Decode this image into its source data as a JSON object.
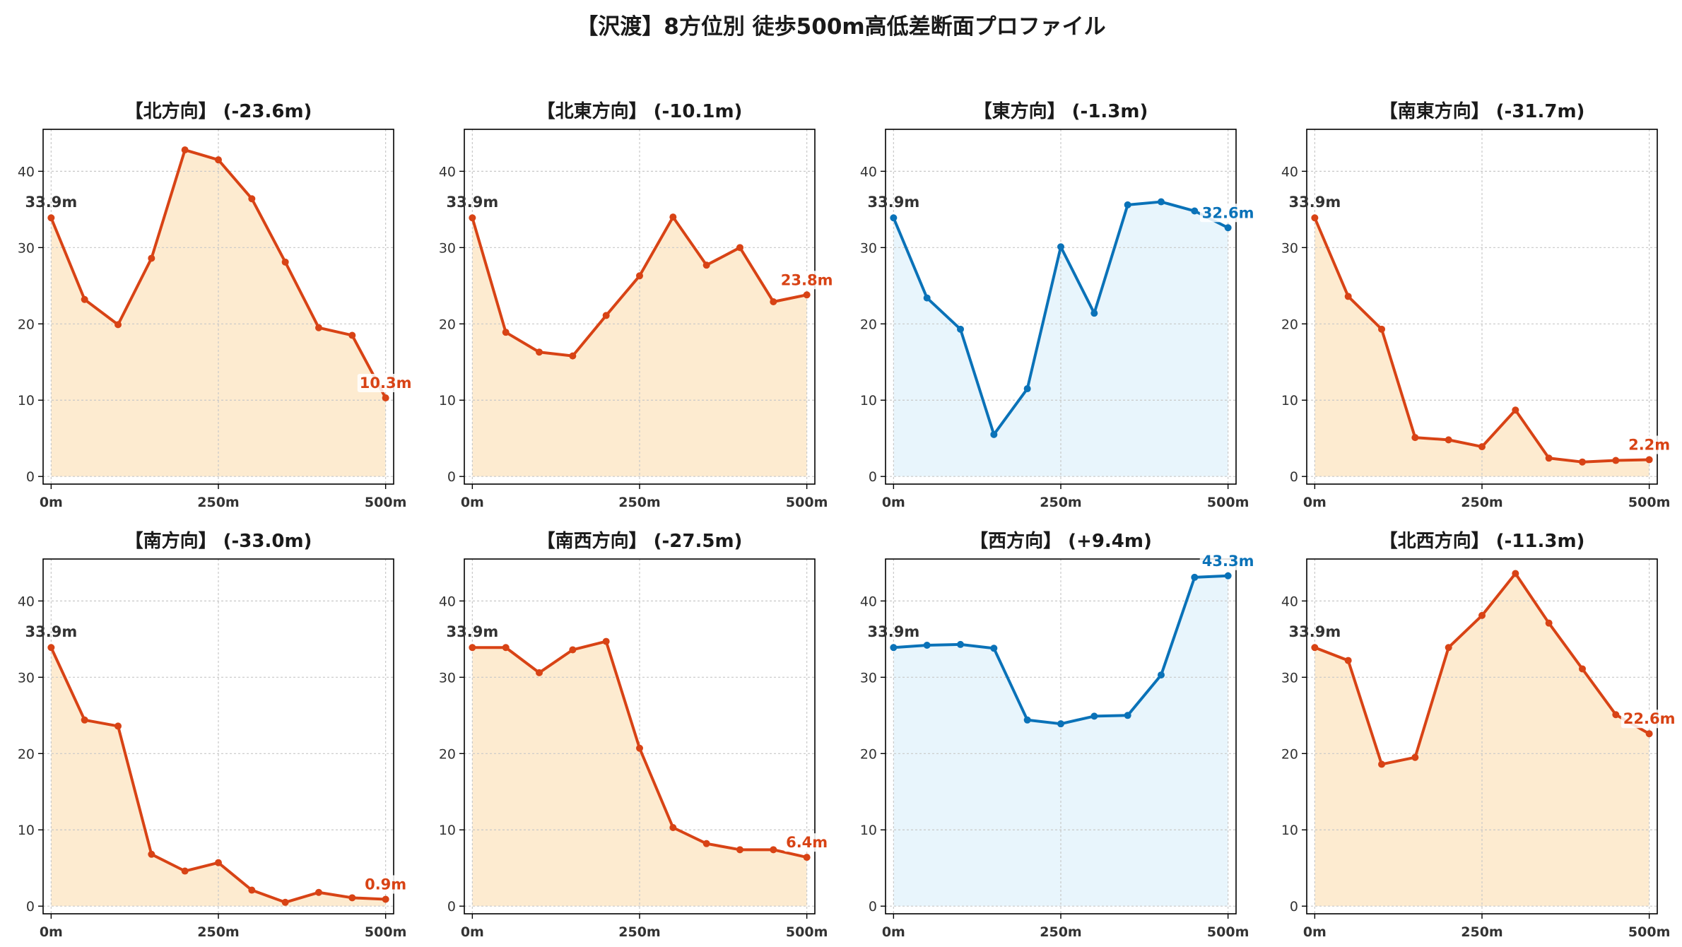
{
  "title": "【沢渡】8方位別 徒歩500m高低差断面プロファイル",
  "colors": {
    "down_line": "#d84315",
    "down_fill": "#fdebd0",
    "up_line": "#0a72b8",
    "up_fill": "#e8f5fc",
    "grid": "#c8c8c8",
    "start_label": "#333333"
  },
  "chart_data": [
    {
      "type": "area",
      "title": "【北方向】 (-23.6m)",
      "x": [
        0,
        50,
        100,
        150,
        200,
        250,
        300,
        350,
        400,
        450,
        500
      ],
      "values": [
        33.9,
        23.2,
        19.9,
        28.6,
        42.8,
        41.5,
        36.4,
        28.1,
        19.5,
        18.5,
        10.3
      ],
      "x_ticks": [
        "0m",
        "250m",
        "500m"
      ],
      "y_ticks": [
        0,
        10,
        20,
        30,
        40
      ],
      "ylim": [
        -1,
        45.5
      ],
      "start_label": "33.9m",
      "end_label": "10.3m",
      "grid": true
    },
    {
      "type": "area",
      "title": "【北東方向】 (-10.1m)",
      "x": [
        0,
        50,
        100,
        150,
        200,
        250,
        300,
        350,
        400,
        450,
        500
      ],
      "values": [
        33.9,
        18.9,
        16.3,
        15.8,
        21.1,
        26.3,
        34.0,
        27.7,
        30.0,
        22.9,
        23.8
      ],
      "x_ticks": [
        "0m",
        "250m",
        "500m"
      ],
      "y_ticks": [
        0,
        10,
        20,
        30,
        40
      ],
      "ylim": [
        -1,
        45.5
      ],
      "start_label": "33.9m",
      "end_label": "23.8m",
      "grid": true
    },
    {
      "type": "area",
      "title": "【東方向】 (-1.3m)",
      "x": [
        0,
        50,
        100,
        150,
        200,
        250,
        300,
        350,
        400,
        450,
        500
      ],
      "values": [
        33.9,
        23.4,
        19.3,
        5.5,
        11.5,
        30.1,
        21.4,
        35.6,
        36.0,
        34.8,
        32.6
      ],
      "x_ticks": [
        "0m",
        "250m",
        "500m"
      ],
      "y_ticks": [
        0,
        10,
        20,
        30,
        40
      ],
      "ylim": [
        -1,
        45.5
      ],
      "start_label": "33.9m",
      "end_label": "32.6m",
      "grid": true
    },
    {
      "type": "area",
      "title": "【南東方向】 (-31.7m)",
      "x": [
        0,
        50,
        100,
        150,
        200,
        250,
        300,
        350,
        400,
        450,
        500
      ],
      "values": [
        33.9,
        23.6,
        19.3,
        5.1,
        4.8,
        3.9,
        8.7,
        2.4,
        1.9,
        2.1,
        2.2
      ],
      "x_ticks": [
        "0m",
        "250m",
        "500m"
      ],
      "y_ticks": [
        0,
        10,
        20,
        30,
        40
      ],
      "ylim": [
        -1,
        45.5
      ],
      "start_label": "33.9m",
      "end_label": "2.2m",
      "grid": true
    },
    {
      "type": "area",
      "title": "【南方向】 (-33.0m)",
      "x": [
        0,
        50,
        100,
        150,
        200,
        250,
        300,
        350,
        400,
        450,
        500
      ],
      "values": [
        33.9,
        24.4,
        23.6,
        6.8,
        4.6,
        5.7,
        2.1,
        0.5,
        1.8,
        1.1,
        0.9
      ],
      "x_ticks": [
        "0m",
        "250m",
        "500m"
      ],
      "y_ticks": [
        0,
        10,
        20,
        30,
        40
      ],
      "ylim": [
        -1,
        45.5
      ],
      "start_label": "33.9m",
      "end_label": "0.9m",
      "grid": true
    },
    {
      "type": "area",
      "title": "【南西方向】 (-27.5m)",
      "x": [
        0,
        50,
        100,
        150,
        200,
        250,
        300,
        350,
        400,
        450,
        500
      ],
      "values": [
        33.9,
        33.9,
        30.6,
        33.6,
        34.7,
        20.7,
        10.3,
        8.2,
        7.4,
        7.4,
        6.4
      ],
      "x_ticks": [
        "0m",
        "250m",
        "500m"
      ],
      "y_ticks": [
        0,
        10,
        20,
        30,
        40
      ],
      "ylim": [
        -1,
        45.5
      ],
      "start_label": "33.9m",
      "end_label": "6.4m",
      "grid": true
    },
    {
      "type": "area",
      "title": "【西方向】 (+9.4m)",
      "x": [
        0,
        50,
        100,
        150,
        200,
        250,
        300,
        350,
        400,
        450,
        500
      ],
      "values": [
        33.9,
        34.2,
        34.3,
        33.8,
        24.4,
        23.9,
        24.9,
        25.0,
        30.3,
        43.1,
        43.3
      ],
      "x_ticks": [
        "0m",
        "250m",
        "500m"
      ],
      "y_ticks": [
        0,
        10,
        20,
        30,
        40
      ],
      "ylim": [
        -1,
        45.5
      ],
      "start_label": "33.9m",
      "end_label": "43.3m",
      "grid": true
    },
    {
      "type": "area",
      "title": "【北西方向】 (-11.3m)",
      "x": [
        0,
        50,
        100,
        150,
        200,
        250,
        300,
        350,
        400,
        450,
        500
      ],
      "values": [
        33.9,
        32.2,
        18.6,
        19.5,
        33.9,
        38.1,
        43.6,
        37.1,
        31.1,
        25.1,
        22.6
      ],
      "x_ticks": [
        "0m",
        "250m",
        "500m"
      ],
      "y_ticks": [
        0,
        10,
        20,
        30,
        40
      ],
      "ylim": [
        -1,
        45.5
      ],
      "start_label": "33.9m",
      "end_label": "22.6m",
      "grid": true
    }
  ]
}
